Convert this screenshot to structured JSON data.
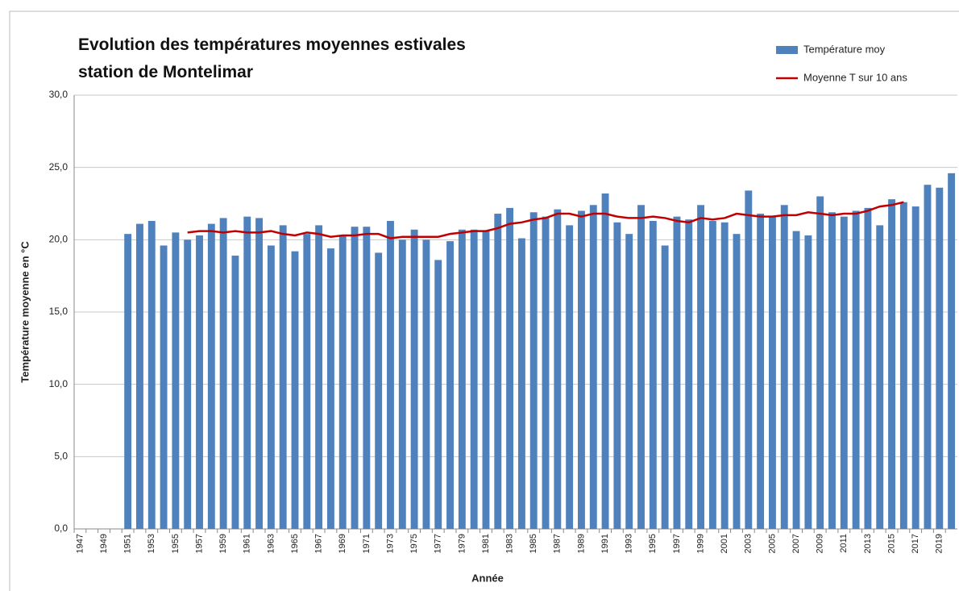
{
  "chart_data": {
    "type": "bar",
    "title": [
      "Evolution des températures moyennes estivales",
      "station de Montelimar"
    ],
    "x_label": "Année",
    "y_label": "Température moyenne en °C",
    "categories": [
      "1947",
      null,
      "1949",
      null,
      "1951",
      null,
      "1953",
      null,
      "1955",
      null,
      "1957",
      null,
      "1959",
      null,
      "1961",
      null,
      "1963",
      null,
      "1965",
      null,
      "1967",
      null,
      "1969",
      null,
      "1971",
      null,
      "1973",
      null,
      "1975",
      null,
      "1977",
      null,
      "1979",
      null,
      "1981",
      null,
      "1983",
      null,
      "1985",
      null,
      "1987",
      null,
      "1989",
      null,
      "1991",
      null,
      "1993",
      null,
      "1995",
      null,
      "1997",
      null,
      "1999",
      null,
      "2001",
      null,
      "2003",
      null,
      "2005",
      null,
      "2007",
      null,
      "2009",
      null,
      "2011",
      null,
      "2013",
      null,
      "2015",
      null,
      "2017",
      null,
      "2019",
      null
    ],
    "series": [
      {
        "name": "Température moy",
        "type": "bar",
        "color": "#4f81bd",
        "values": [
          null,
          null,
          null,
          null,
          20.4,
          21.1,
          21.3,
          19.6,
          20.5,
          20.0,
          20.3,
          21.1,
          21.5,
          18.9,
          21.6,
          21.5,
          19.6,
          21.0,
          19.2,
          20.4,
          21.0,
          19.4,
          20.3,
          20.9,
          20.9,
          19.1,
          21.3,
          20.0,
          20.7,
          20.0,
          18.6,
          19.9,
          20.7,
          20.7,
          20.6,
          21.8,
          22.2,
          20.1,
          21.9,
          21.6,
          22.1,
          21.0,
          22.0,
          22.4,
          23.2,
          21.2,
          20.4,
          22.4,
          21.3,
          19.6,
          21.6,
          21.4,
          22.4,
          21.3,
          21.2,
          20.4,
          23.4,
          21.8,
          21.6,
          22.4,
          20.6,
          20.3,
          23.0,
          21.9,
          21.6,
          22.0,
          22.2,
          21.0,
          22.8,
          22.6,
          22.3,
          23.8,
          23.6,
          24.6
        ]
      },
      {
        "name": "Moyenne T sur 10 ans",
        "type": "line",
        "color": "#c00000",
        "values": [
          null,
          null,
          null,
          null,
          null,
          null,
          null,
          null,
          null,
          20.5,
          20.6,
          20.6,
          20.5,
          20.6,
          20.5,
          20.5,
          20.6,
          20.4,
          20.3,
          20.5,
          20.4,
          20.2,
          20.3,
          20.3,
          20.4,
          20.4,
          20.1,
          20.2,
          20.2,
          20.2,
          20.2,
          20.4,
          20.5,
          20.6,
          20.6,
          20.8,
          21.1,
          21.2,
          21.4,
          21.5,
          21.8,
          21.8,
          21.6,
          21.8,
          21.8,
          21.6,
          21.5,
          21.5,
          21.6,
          21.5,
          21.3,
          21.2,
          21.5,
          21.4,
          21.5,
          21.8,
          21.7,
          21.6,
          21.6,
          21.7,
          21.7,
          21.9,
          21.8,
          21.7,
          21.8,
          21.8,
          22.0,
          22.3,
          22.4,
          22.6,
          null,
          null,
          null,
          null
        ]
      }
    ],
    "ylim": [
      0,
      30
    ],
    "yticks": [
      {
        "value": 0,
        "label": "0,0"
      },
      {
        "value": 5,
        "label": "5,0"
      },
      {
        "value": 10,
        "label": "10,0"
      },
      {
        "value": 15,
        "label": "15,0"
      },
      {
        "value": 20,
        "label": "20,0"
      },
      {
        "value": 25,
        "label": "25,0"
      },
      {
        "value": 30,
        "label": "30,0"
      }
    ],
    "grid": true,
    "legend": "top-right"
  }
}
